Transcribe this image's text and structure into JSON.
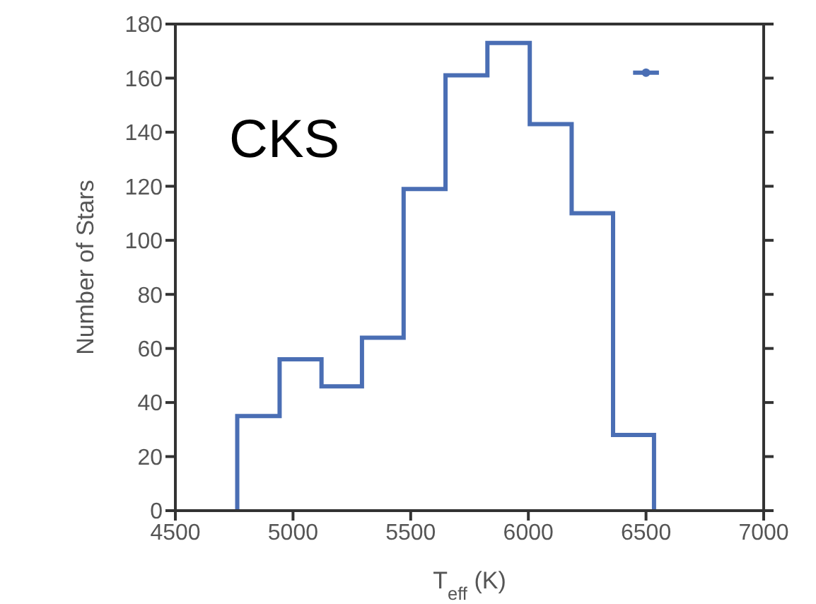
{
  "chart_data": {
    "type": "histogram",
    "xlabel": "T$_{eff}$ (K)",
    "ylabel": "Number of Stars",
    "bins": [
      4763,
      4943,
      5121,
      5293,
      5470,
      5648,
      5826,
      6006,
      6184,
      6360,
      6534
    ],
    "values": [
      35,
      56,
      46,
      64,
      119,
      161,
      173,
      143,
      110,
      28
    ],
    "color": "#4a6eb4",
    "series": [
      {
        "type": "scatter",
        "x": [
          6500
        ],
        "values": [
          162
        ],
        "xerrors": [
          55
        ],
        "color": "#4a6eb4"
      }
    ],
    "annotations": [
      "CKS"
    ],
    "xlim": [
      4500,
      7000
    ],
    "xticks": [
      4500,
      5000,
      5500,
      6000,
      6500,
      7000
    ],
    "ylim": [
      0,
      180
    ],
    "yticks": [
      0,
      20,
      40,
      60,
      80,
      100,
      120,
      140,
      160,
      180
    ],
    "grid": false,
    "legend": false
  }
}
